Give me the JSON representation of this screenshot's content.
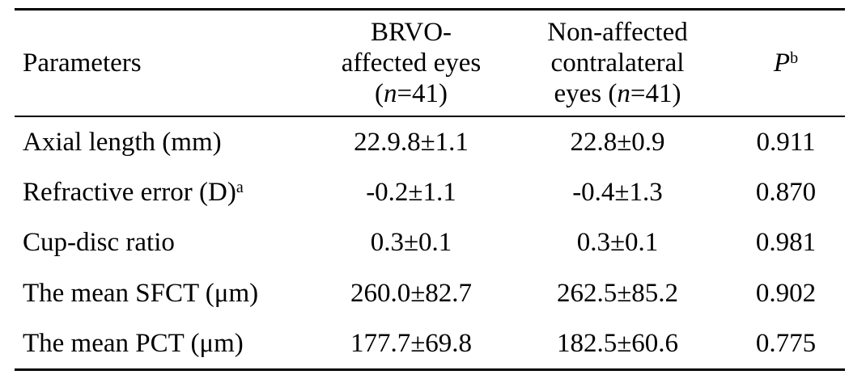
{
  "table": {
    "header": {
      "parameters": "Parameters",
      "brvo_line1": "BRVO-",
      "brvo_line2": "affected eyes",
      "brvo_line3_open": "(",
      "brvo_line3_n": "n",
      "brvo_line3_rest": "=41)",
      "non_line1": "Non-affected",
      "non_line2": "contralateral",
      "non_line3_pre": "eyes (",
      "non_line3_n": "n",
      "non_line3_rest": "=41)",
      "p_label": "P",
      "p_sup": "b"
    },
    "rows": [
      {
        "param": "Axial length (mm)",
        "param_sup": "",
        "brvo": "22.9.8±1.1",
        "non": "22.8±0.9",
        "p": "0.911"
      },
      {
        "param": "Refractive error (D)",
        "param_sup": "a",
        "brvo": "-0.2±1.1",
        "non": "-0.4±1.3",
        "p": "0.870"
      },
      {
        "param": "Cup-disc ratio",
        "param_sup": "",
        "brvo": "0.3±0.1",
        "non": "0.3±0.1",
        "p": "0.981"
      },
      {
        "param": "The mean SFCT (μm)",
        "param_sup": "",
        "brvo": "260.0±82.7",
        "non": "262.5±85.2",
        "p": "0.902"
      },
      {
        "param": "The mean PCT (μm)",
        "param_sup": "",
        "brvo": "177.7±69.8",
        "non": "182.5±60.6",
        "p": "0.775"
      }
    ]
  }
}
